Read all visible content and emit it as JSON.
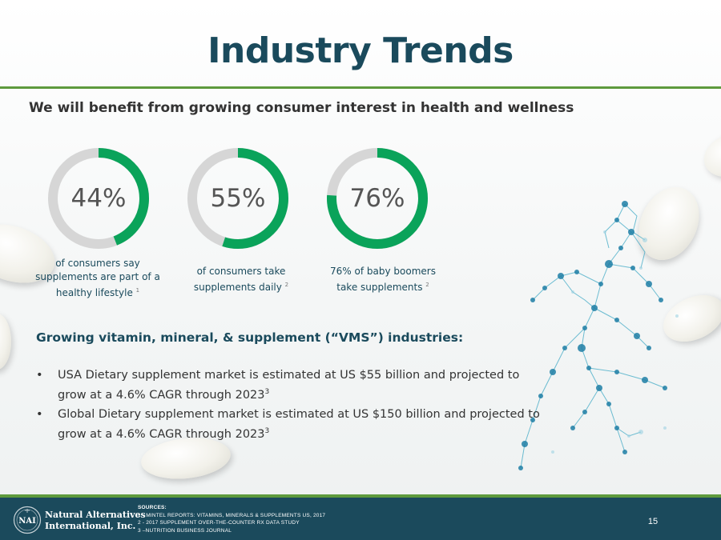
{
  "slide": {
    "title": "Industry Trends",
    "subtitle": "We will benefit from growing consumer interest in health and wellness"
  },
  "stats": [
    {
      "value": "44%",
      "fraction": 0.44,
      "caption": "of consumers say supplements are part of a healthy lifestyle",
      "ref": "1"
    },
    {
      "value": "55%",
      "fraction": 0.55,
      "caption": "of consumers take supplements daily",
      "ref": "2"
    },
    {
      "value": "76%",
      "fraction": 0.76,
      "caption": "76% of baby boomers take supplements",
      "ref": "2"
    }
  ],
  "colors": {
    "accent_green": "#0aa35a",
    "ring_gray": "#d6d6d6",
    "title_navy": "#1a4a5c",
    "footer_navy": "#1b4a5c"
  },
  "section": {
    "heading": "Growing vitamin, mineral, & supplement (“VMS”) industries:",
    "bullet_glyph": "•",
    "bullets": [
      {
        "text": "USA Dietary supplement market is estimated at US $55 billion and projected to grow at a 4.6% CAGR through 2023",
        "ref": "3"
      },
      {
        "text": "Global Dietary supplement market is estimated at US $150 billion and projected to grow at a 4.6% CAGR through 2023",
        "ref": "3"
      }
    ]
  },
  "footer": {
    "logo_line1": "Natural Alternatives",
    "logo_line2": "International, Inc.",
    "logo_icon": "nai-seal-logo",
    "sources_heading": "SOURCES:",
    "sources": [
      "1 - MINTEL REPORTS: VITAMINS, MINERALS & SUPPLEMENTS US, 2017",
      "2 - 2017 SUPPLEMENT OVER-THE-COUNTER RX DATA STUDY",
      "3 –NUTRITION BUSINESS JOURNAL"
    ],
    "page_number": "15"
  }
}
